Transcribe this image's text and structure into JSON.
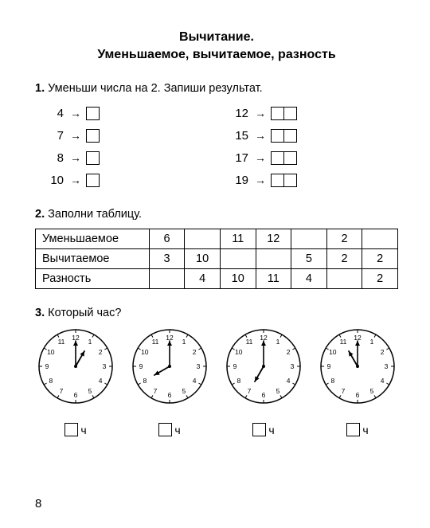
{
  "title_line1": "Вычитание.",
  "title_line2": "Уменьшаемое, вычитаемое, разность",
  "task1": {
    "num": "1.",
    "text": "Уменьши числа на 2. Запиши результат.",
    "left": [
      {
        "n": "4",
        "boxes": 1
      },
      {
        "n": "7",
        "boxes": 1
      },
      {
        "n": "8",
        "boxes": 1
      },
      {
        "n": "10",
        "boxes": 1
      }
    ],
    "right": [
      {
        "n": "12",
        "boxes": 2
      },
      {
        "n": "15",
        "boxes": 2
      },
      {
        "n": "17",
        "boxes": 2
      },
      {
        "n": "19",
        "boxes": 2
      }
    ]
  },
  "task2": {
    "num": "2.",
    "text": "Заполни таблицу.",
    "rows": [
      {
        "label": "Уменьшаемое",
        "cells": [
          "6",
          "",
          "11",
          "12",
          "",
          "2",
          ""
        ]
      },
      {
        "label": "Вычитаемое",
        "cells": [
          "3",
          "10",
          "",
          "",
          "5",
          "2",
          "2"
        ]
      },
      {
        "label": "Разность",
        "cells": [
          "",
          "4",
          "10",
          "11",
          "4",
          "",
          "2"
        ]
      }
    ]
  },
  "task3": {
    "num": "3.",
    "text": "Который час?",
    "clocks": [
      {
        "hour": 1,
        "minute": 0
      },
      {
        "hour": 8,
        "minute": 0
      },
      {
        "hour": 7,
        "minute": 0
      },
      {
        "hour": 11,
        "minute": 0
      }
    ],
    "unit_label": "ч"
  },
  "page_number": "8",
  "style": {
    "clock_radius": 46,
    "tick_fontsize": 8.5,
    "number_color": "#000",
    "clock_stroke": "#000",
    "hour_hand_len": 22,
    "minute_hand_len": 32
  }
}
